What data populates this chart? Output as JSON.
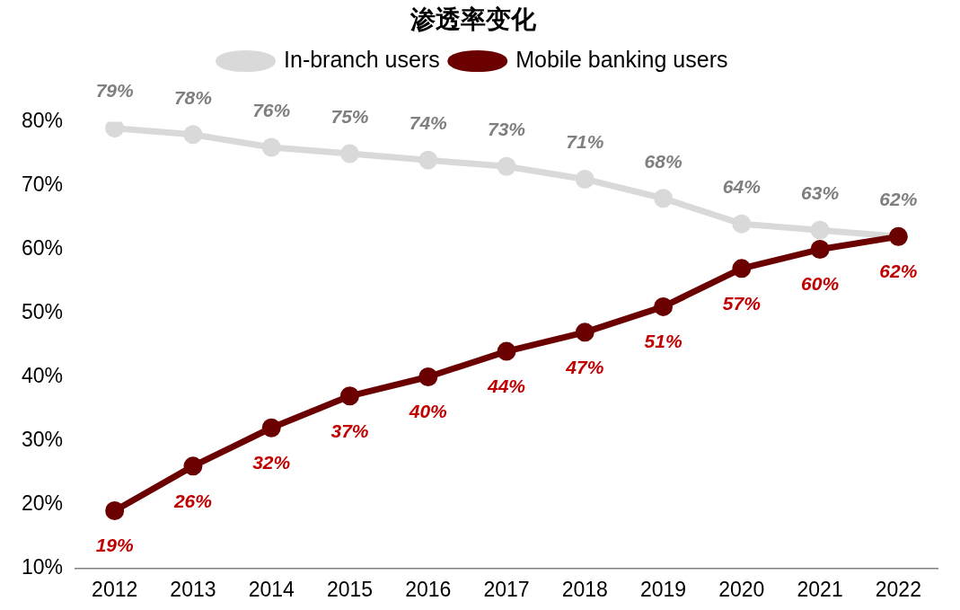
{
  "chart_data": {
    "type": "line",
    "title": "渗透率变化",
    "categories": [
      "2012",
      "2013",
      "2014",
      "2015",
      "2016",
      "2017",
      "2018",
      "2019",
      "2020",
      "2021",
      "2022"
    ],
    "series": [
      {
        "name": "In-branch users",
        "color": "#d9d9d9",
        "values": [
          79,
          78,
          76,
          75,
          74,
          73,
          71,
          68,
          64,
          63,
          62
        ],
        "value_labels": [
          "79%",
          "78%",
          "76%",
          "75%",
          "74%",
          "73%",
          "71%",
          "68%",
          "64%",
          "63%",
          "62%"
        ]
      },
      {
        "name": "Mobile banking users",
        "color": "#6b0000",
        "values": [
          19,
          26,
          32,
          37,
          40,
          44,
          47,
          51,
          57,
          60,
          62
        ],
        "value_labels": [
          "19%",
          "26%",
          "32%",
          "37%",
          "40%",
          "44%",
          "47%",
          "51%",
          "57%",
          "60%",
          "62%"
        ]
      }
    ],
    "ylim": [
      10,
      80
    ],
    "yticks": [
      {
        "value": 10,
        "label": "10%"
      },
      {
        "value": 20,
        "label": "20%"
      },
      {
        "value": 30,
        "label": "30%"
      },
      {
        "value": 40,
        "label": "40%"
      },
      {
        "value": 50,
        "label": "50%"
      },
      {
        "value": 60,
        "label": "60%"
      },
      {
        "value": 70,
        "label": "70%"
      },
      {
        "value": 80,
        "label": "80%"
      }
    ],
    "grid": false,
    "legend": "top",
    "marker": "circle",
    "line_style": "solid"
  }
}
